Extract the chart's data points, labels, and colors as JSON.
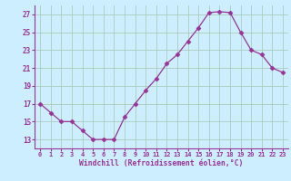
{
  "x": [
    0,
    1,
    2,
    3,
    4,
    5,
    6,
    7,
    8,
    9,
    10,
    11,
    12,
    13,
    14,
    15,
    16,
    17,
    18,
    19,
    20,
    21,
    22,
    23
  ],
  "y": [
    17,
    16,
    15,
    15,
    14,
    13,
    13,
    13,
    15.5,
    17,
    18.5,
    19.8,
    21.5,
    22.5,
    24,
    25.5,
    27.2,
    27.3,
    27.2,
    25,
    23,
    22.5,
    21,
    20.5
  ],
  "line_color": "#993399",
  "marker": "D",
  "marker_size": 2.5,
  "bg_color": "#cceeff",
  "grid_color": "#aaccbb",
  "xlabel": "Windchill (Refroidissement éolien,°C)",
  "xlabel_color": "#993399",
  "tick_color": "#993399",
  "spine_color": "#993399",
  "ylim": [
    12,
    28
  ],
  "yticks": [
    13,
    15,
    17,
    19,
    21,
    23,
    25,
    27
  ],
  "xticks": [
    0,
    1,
    2,
    3,
    4,
    5,
    6,
    7,
    8,
    9,
    10,
    11,
    12,
    13,
    14,
    15,
    16,
    17,
    18,
    19,
    20,
    21,
    22,
    23
  ]
}
